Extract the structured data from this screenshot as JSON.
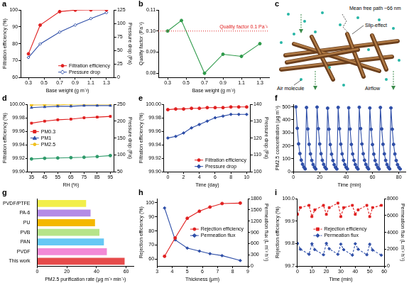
{
  "chart_data": [
    {
      "label": "a",
      "type": "line",
      "x": [
        0.3,
        0.45,
        0.7,
        0.9,
        1.1,
        1.3
      ],
      "xlabel": "Base weight (g m⁻²)",
      "ylabel": "Filtration efficiency (%)",
      "y2label": "Pressure drop (Pa)",
      "xlim": [
        0.2,
        1.4
      ],
      "xticks": [
        0.3,
        0.5,
        0.7,
        0.9,
        1.1,
        1.3
      ],
      "ylim": [
        60,
        100
      ],
      "yticks": [
        60,
        70,
        80,
        90,
        100
      ],
      "y2lim": [
        0,
        125
      ],
      "y2ticks": [
        0,
        25,
        50,
        75,
        100,
        125
      ],
      "grid": false,
      "legend": "lower right",
      "series": [
        {
          "name": "Filtration efficiency",
          "color": "#e02020",
          "marker": "circle",
          "line_style": "solid",
          "values": [
            74,
            91,
            99,
            99.9,
            100,
            100
          ]
        },
        {
          "name": "Pressure drop",
          "color": "#2f4fa8",
          "marker": "diamond-open",
          "line_style": "solid",
          "axis": "y2",
          "values": [
            37,
            62,
            84,
            97,
            109,
            120
          ]
        }
      ]
    },
    {
      "label": "b",
      "type": "line",
      "x": [
        0.3,
        0.45,
        0.7,
        0.9,
        1.1,
        1.3
      ],
      "xlabel": "Base weight (g m⁻²)",
      "ylabel": "Quality factor (Pa⁻¹)",
      "xlim": [
        0.2,
        1.4
      ],
      "xticks": [
        0.3,
        0.5,
        0.7,
        0.9,
        1.1,
        1.3
      ],
      "ylim": [
        0.078,
        0.11
      ],
      "yticks": [
        0.08,
        0.09,
        {
          "value": 0.1,
          "label": "0.10"
        },
        0.11
      ],
      "grid": false,
      "annotations": [
        {
          "y": 0.1,
          "text": "Quality factor 0.1 Pa⁻¹",
          "color": "#e02020",
          "line_style": "dotted"
        }
      ],
      "series": [
        {
          "color": "#2e9a4a",
          "marker": "circle",
          "line_style": "solid",
          "values": [
            0.1,
            0.105,
            0.08,
            0.089,
            0.088,
            0.094
          ]
        }
      ]
    },
    {
      "label": "c",
      "type": "diagram",
      "annotations": [
        "Mean free path ~66 nm",
        "Slip-effect",
        "Air molecule",
        "Airflow"
      ]
    },
    {
      "label": "d",
      "type": "line",
      "x": [
        35,
        45,
        55,
        65,
        75,
        85,
        95
      ],
      "xlabel": "RH (%)",
      "ylabel": "Filtration efficiency (%)",
      "y2label": "Pressure drop (Pa)",
      "xlim": [
        32,
        98
      ],
      "xticks": [
        35,
        45,
        55,
        65,
        75,
        85,
        95
      ],
      "ylim": [
        99.9,
        100
      ],
      "yticks": [
        {
          "value": 99.9,
          "label": "99.90"
        },
        99.92,
        99.94,
        99.96,
        99.98,
        {
          "value": 100,
          "label": "100.00"
        }
      ],
      "y2lim": [
        50,
        250
      ],
      "y2ticks": [
        50,
        100,
        150,
        200,
        250
      ],
      "grid": false,
      "legend": "left",
      "series": [
        {
          "name": "PM0.3",
          "color": "#e02020",
          "marker": "square",
          "line_style": "solid",
          "values": [
            99.972,
            99.975,
            99.977,
            99.978,
            99.98,
            99.981,
            99.982
          ]
        },
        {
          "name": "PM1",
          "color": "#2f4fa8",
          "marker": "triangle",
          "line_style": "solid",
          "values": [
            99.995,
            99.996,
            99.997,
            99.997,
            99.998,
            99.998,
            99.998
          ]
        },
        {
          "name": "PM2.5",
          "color": "#f0c020",
          "marker": "circle",
          "line_style": "solid",
          "values": [
            99.999,
            99.999,
            99.999,
            100,
            100,
            100,
            100
          ]
        },
        {
          "color": "#2e9a6a",
          "marker": "circle",
          "line_style": "solid",
          "axis": "y2",
          "values": [
            88,
            90,
            91,
            92,
            93,
            95,
            98
          ]
        }
      ]
    },
    {
      "label": "e",
      "type": "line",
      "x": [
        0,
        1,
        2,
        3,
        4,
        5,
        6,
        7,
        8,
        9,
        10
      ],
      "xlabel": "Time (day)",
      "ylabel": "Filtration efficiency (%)",
      "y2label": "Pressure drop (Pa)",
      "xlim": [
        -0.5,
        10.5
      ],
      "xticks": [
        0,
        2,
        4,
        6,
        8,
        10
      ],
      "ylim": [
        99.9,
        100
      ],
      "yticks": [
        {
          "value": 99.9,
          "label": "99.90"
        },
        99.92,
        99.94,
        99.96,
        99.98,
        {
          "value": 100,
          "label": "100.00"
        }
      ],
      "y2lim": [
        100,
        140
      ],
      "y2ticks": [
        100,
        110,
        120,
        130,
        140
      ],
      "grid": false,
      "legend": "lower right",
      "series": [
        {
          "name": "Filtration efficiency",
          "color": "#e02020",
          "marker": "circle",
          "line_style": "solid",
          "values": [
            99.992,
            99.993,
            99.993,
            99.994,
            99.994,
            99.995,
            99.995,
            99.995,
            99.996,
            99.996,
            99.996
          ]
        },
        {
          "name": "Pressure drop",
          "color": "#2f4fa8",
          "marker": "diamond",
          "line_style": "solid",
          "axis": "y2",
          "values": [
            120,
            121,
            123,
            126,
            128,
            130,
            132,
            133,
            134,
            134,
            134
          ]
        }
      ]
    },
    {
      "label": "f",
      "type": "line",
      "x": [
        2,
        3,
        4,
        5,
        6,
        7,
        8,
        9,
        10,
        11,
        12,
        13,
        14,
        15,
        16,
        17,
        18,
        19,
        20,
        21,
        22,
        23,
        24,
        25,
        26,
        27,
        28,
        29,
        30,
        31,
        32,
        33,
        34,
        35,
        36,
        37,
        38,
        39,
        40,
        41,
        42,
        43,
        44,
        45,
        46,
        47,
        48,
        49,
        50,
        51,
        52,
        53,
        54,
        55,
        56,
        57,
        58,
        59,
        60,
        61,
        62,
        63,
        64,
        65,
        66,
        67,
        68,
        69,
        70,
        71,
        72,
        73,
        74,
        75,
        76,
        77,
        78,
        79,
        80,
        81
      ],
      "xlabel": "Time (min)",
      "ylabel": "PM2.5 concentration (μg m⁻³)",
      "xlim": [
        0,
        85
      ],
      "xticks": [
        0,
        20,
        40,
        60,
        80
      ],
      "ylim": [
        0,
        520
      ],
      "yticks": [
        0,
        100,
        200,
        300,
        400,
        500
      ],
      "grid": false,
      "series": [
        {
          "color": "#2f4fa8",
          "marker": "circle",
          "line_style": "solid",
          "values": [
            500,
            335,
            215,
            140,
            90,
            58,
            36,
            22,
            495,
            330,
            212,
            138,
            88,
            56,
            35,
            21,
            498,
            332,
            214,
            139,
            89,
            57,
            35,
            22,
            490,
            328,
            210,
            136,
            87,
            55,
            34,
            21,
            496,
            331,
            213,
            138,
            88,
            56,
            35,
            22,
            493,
            329,
            211,
            137,
            88,
            56,
            34,
            21,
            497,
            333,
            214,
            139,
            89,
            57,
            35,
            22,
            491,
            327,
            210,
            136,
            87,
            55,
            34,
            21,
            495,
            330,
            212,
            138,
            88,
            56,
            35,
            22,
            492,
            328,
            211,
            137,
            87,
            55,
            34,
            21
          ]
        }
      ]
    },
    {
      "label": "g",
      "type": "bar",
      "orientation": "horizontal",
      "categories": [
        "PVDF/PTFE",
        "PA-6",
        "PU",
        "PVB",
        "PAN",
        "PVDF",
        "This work"
      ],
      "values": [
        33,
        36,
        39,
        42,
        45,
        47,
        59
      ],
      "colors": [
        "#f2ee4a",
        "#b48ce6",
        "#f5b800",
        "#b6e48a",
        "#66c8f5",
        "#f28ad6",
        "#e64b4b"
      ],
      "xlabel": "PM2.5 purification rate (μg m⁻³ min⁻¹)",
      "xlim": [
        0,
        65
      ],
      "xticks": [
        0,
        20,
        40,
        60
      ],
      "grid": false
    },
    {
      "label": "h",
      "type": "line",
      "x": [
        3.5,
        4.2,
        5.0,
        5.8,
        6.5,
        7.3,
        8.5
      ],
      "xlabel": "Thickness (μm)",
      "ylabel": "Rejection efficiency (%)",
      "y2label": "Permeation flux (L m⁻² h⁻¹)",
      "xlim": [
        3,
        9
      ],
      "xticks": [
        3,
        4,
        5,
        6,
        7,
        8,
        9
      ],
      "ylim": [
        55,
        103
      ],
      "yticks": [
        60,
        70,
        80,
        90,
        100
      ],
      "y2lim": [
        0,
        1800
      ],
      "y2ticks": [
        0,
        300,
        600,
        900,
        1200,
        1500,
        1800
      ],
      "grid": false,
      "legend": "right",
      "series": [
        {
          "name": "Rejection efficiency",
          "color": "#e02020",
          "marker": "circle",
          "line_style": "solid",
          "values": [
            62,
            75,
            89,
            94,
            97,
            99.5,
            99.8
          ]
        },
        {
          "name": "Permeation flux",
          "color": "#2f4fa8",
          "marker": "diamond",
          "line_style": "solid",
          "axis": "y2",
          "values": [
            1550,
            700,
            480,
            400,
            330,
            280,
            150
          ]
        }
      ]
    },
    {
      "label": "i",
      "type": "line",
      "x": [
        0,
        2,
        8,
        10,
        12,
        18,
        20,
        22,
        28,
        30,
        32,
        38,
        40,
        42,
        48,
        50,
        52,
        58
      ],
      "xlabel": "Time (min)",
      "ylabel": "Rejection efficiency (%)",
      "y2label": "Permeation flux (L m⁻² h⁻¹)",
      "xlim": [
        0,
        60
      ],
      "xticks": [
        0,
        10,
        20,
        30,
        40,
        50,
        60
      ],
      "ylim": [
        99.7,
        100
      ],
      "yticks": [
        99.7,
        99.8,
        99.9,
        {
          "value": 100,
          "label": "100.0"
        }
      ],
      "y2lim": [
        0,
        8000
      ],
      "y2ticks": [
        0,
        2000,
        4000,
        6000,
        8000
      ],
      "grid": false,
      "legend": "center",
      "series": [
        {
          "name": "Rejection efficiency",
          "color": "#e02020",
          "marker": "square",
          "line_style": "dashed",
          "values": [
            99.93,
            99.96,
            99.97,
            99.92,
            99.95,
            99.97,
            99.93,
            99.96,
            99.98,
            99.92,
            99.96,
            99.97,
            99.93,
            99.95,
            99.97,
            99.92,
            99.96,
            99.97
          ]
        },
        {
          "name": "Permeation flux",
          "color": "#2f4fa8",
          "marker": "diamond",
          "line_style": "dashed",
          "axis": "y2",
          "values": [
            2700,
            2000,
            1400,
            2650,
            1950,
            1350,
            2700,
            2050,
            1400,
            2600,
            1950,
            1300,
            2650,
            2000,
            1350,
            2600,
            1900,
            1300
          ]
        }
      ]
    }
  ]
}
